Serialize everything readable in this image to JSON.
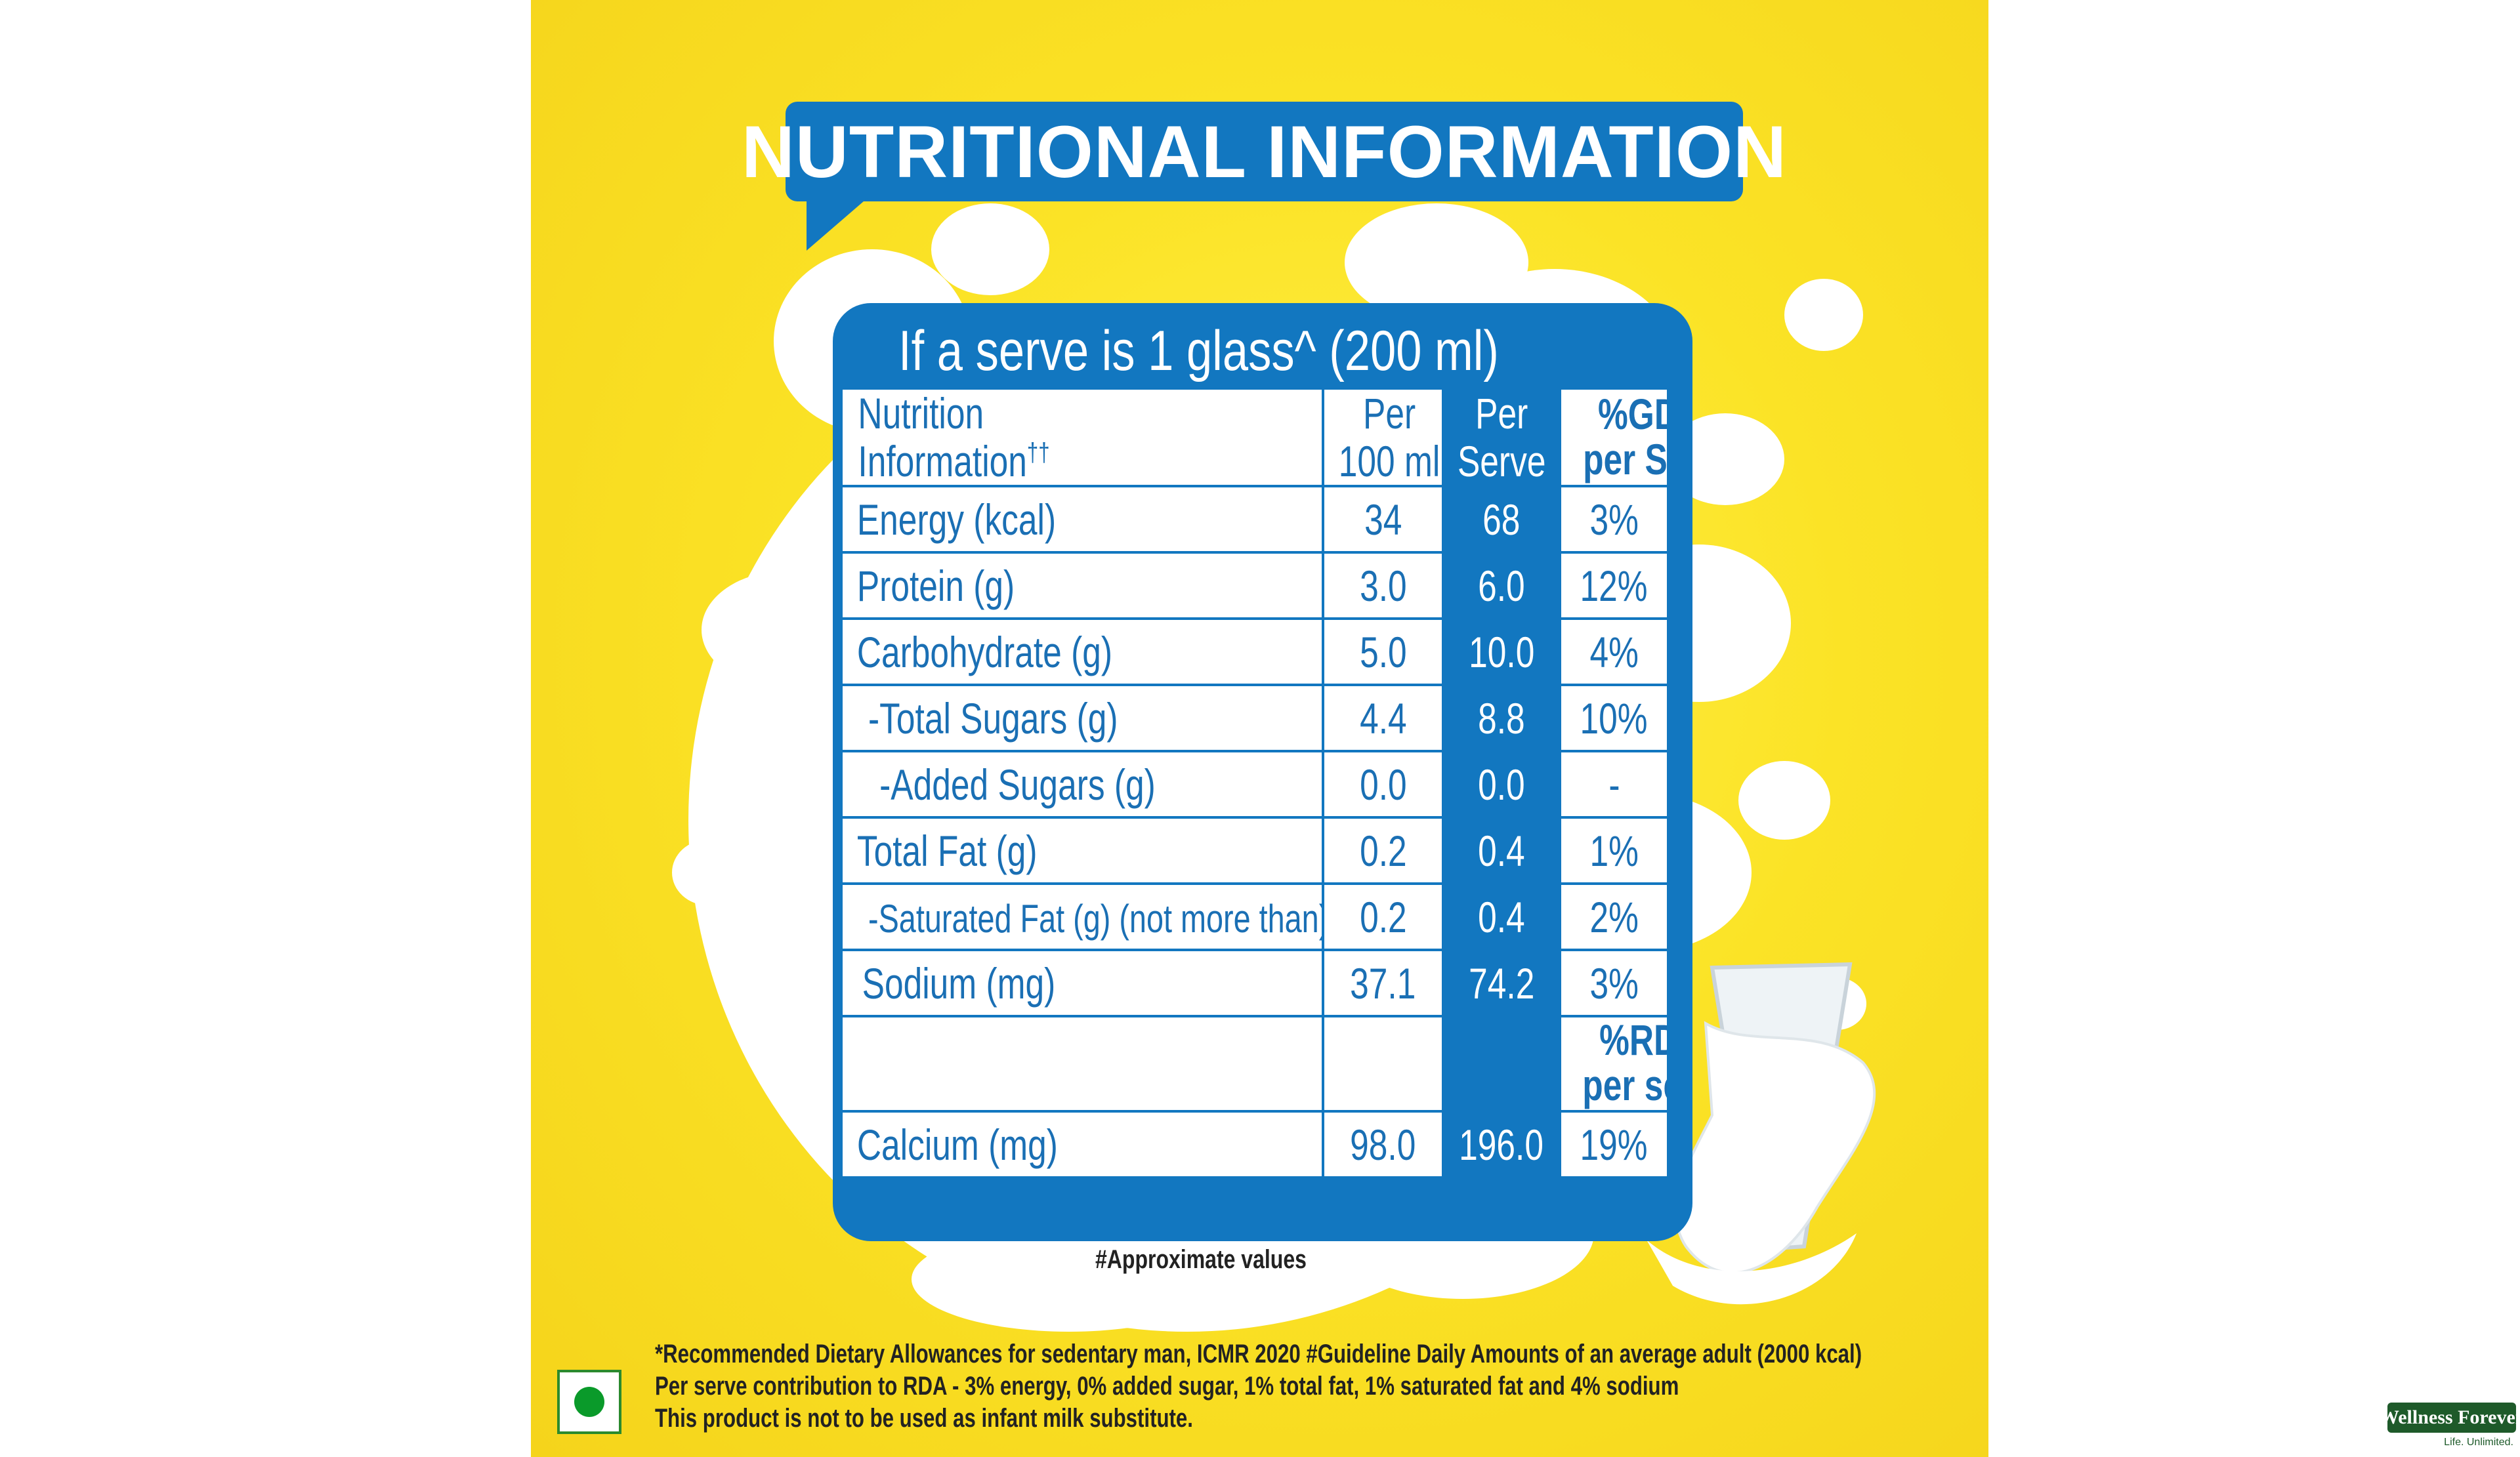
{
  "title": "NUTRITIONAL INFORMATION",
  "serve_heading": "If a serve is 1 glass^ (200 ml)",
  "table": {
    "headers": {
      "col1_line1": "Nutrition",
      "col1_line2": "Information",
      "col1_mark": "††",
      "col2_line1": "Per",
      "col2_line2": "100 ml",
      "col3_line1": "Per",
      "col3_line2": "Serve",
      "col4_line1": "%GDA#",
      "col4_line2": "per Serve"
    },
    "rows": [
      {
        "name": "Energy (kcal)",
        "per100": "34",
        "perServe": "68",
        "pct": "3%"
      },
      {
        "name": "Protein (g)",
        "per100": "3.0",
        "perServe": "6.0",
        "pct": "12%"
      },
      {
        "name": "Carbohydrate (g)",
        "per100": "5.0",
        "perServe": "10.0",
        "pct": "4%"
      },
      {
        "name": "-Total Sugars (g)",
        "per100": "4.4",
        "perServe": "8.8",
        "pct": "10%"
      },
      {
        "name": "-Added Sugars (g)",
        "per100": "0.0",
        "perServe": "0.0",
        "pct": "-"
      },
      {
        "name": "Total Fat (g)",
        "per100": "0.2",
        "perServe": "0.4",
        "pct": "1%"
      },
      {
        "name": "-Saturated Fat (g) (not more than)",
        "per100": "0.2",
        "perServe": "0.4",
        "pct": "2%"
      },
      {
        "name": "Sodium (mg)",
        "per100": "37.1",
        "perServe": "74.2",
        "pct": "3%"
      }
    ],
    "rda_header_line1": "%RDA*",
    "rda_header_line2": "per serve",
    "calcium": {
      "name": "Calcium (mg)",
      "per100": "98.0",
      "perServe": "196.0",
      "pct": "19%"
    }
  },
  "approx_note": "#Approximate values",
  "footnotes": [
    "*Recommended Dietary Allowances for sedentary man, ICMR 2020 #Guideline Daily Amounts of an average adult (2000 kcal)",
    "Per serve contribution to RDA - 3% energy, 0% added sugar, 1% total fat, 1% saturated fat and 4% sodium",
    "This product is not to be used as infant milk substitute."
  ],
  "logo": {
    "name": "Wellness Forever",
    "tagline": "Life. Unlimited."
  },
  "colors": {
    "background": "#f9de22",
    "accent_blue": "#1277c0",
    "text_blue": "#1a6fb4",
    "veg_green": "#0a9a2a"
  }
}
